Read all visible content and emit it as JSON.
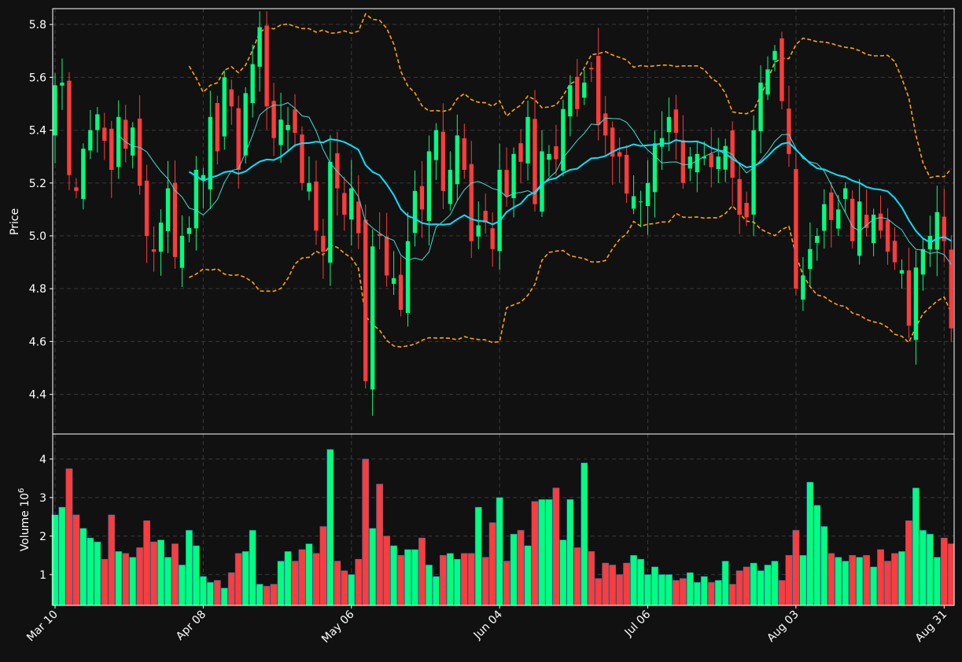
{
  "chart_data": [
    {
      "type": "candlestick",
      "panel": "price",
      "ylabel": "Price",
      "ylim": [
        4.25,
        5.86
      ],
      "yticks": [
        4.4,
        4.6,
        4.8,
        5.0,
        5.2,
        5.4,
        5.6,
        5.8
      ],
      "grid": true,
      "colors": {
        "up": "#00ff7f",
        "down": "#ff3b3b",
        "ma_fast": "#00e5ff",
        "ma_slow": "#40e0d0",
        "band": "#ffa500",
        "background": "#111111"
      },
      "x_tick_labels": [
        "Mar 10",
        "Apr 08",
        "May 06",
        "Jun 04",
        "Jul 06",
        "Aug 03",
        "Aug 31"
      ],
      "x_tick_index": [
        0,
        21,
        42,
        63,
        84,
        105,
        126
      ],
      "closes": [
        5.57,
        5.58,
        5.23,
        5.17,
        5.33,
        5.4,
        5.46,
        5.36,
        5.25,
        5.45,
        5.33,
        5.41,
        5.19,
        5.0,
        4.94,
        5.05,
        5.18,
        4.92,
        5.0,
        5.03,
        5.25,
        5.23,
        5.45,
        5.32,
        5.6,
        5.49,
        5.25,
        5.54,
        5.65,
        5.79,
        5.49,
        5.37,
        5.44,
        5.42,
        5.39,
        5.2,
        5.2,
        5.02,
        4.94,
        5.28,
        5.18,
        5.08,
        5.18,
        5.01,
        4.45,
        4.96,
        5.0,
        4.85,
        4.84,
        4.72,
        4.98,
        5.17,
        5.1,
        5.32,
        5.4,
        5.17,
        5.25,
        5.38,
        5.25,
        4.98,
        5.04,
        5.05,
        4.95,
        5.25,
        5.15,
        5.31,
        5.28,
        5.45,
        5.12,
        5.32,
        5.31,
        5.29,
        5.48,
        5.57,
        5.48,
        5.58,
        5.63,
        5.42,
        5.38,
        5.3,
        5.3,
        5.16,
        5.15,
        5.13,
        5.2,
        5.35,
        5.37,
        5.45,
        5.39,
        5.2,
        5.3,
        5.31,
        5.3,
        5.26,
        5.3,
        5.34,
        5.22,
        5.08,
        5.07,
        5.4,
        5.58,
        5.63,
        5.7,
        5.51,
        5.31,
        4.8,
        4.85,
        4.95,
        5.0,
        5.12,
        5.06,
        5.1,
        5.18,
        4.98,
        5.13,
        5.03,
        5.08,
        5.02,
        4.94,
        4.9,
        4.87,
        4.66,
        4.88,
        4.95,
        5.0,
        5.09,
        4.98,
        4.65
      ],
      "volume_panel": {
        "ylabel": "Volume  10^6",
        "yticks": [
          1,
          2,
          3,
          4
        ],
        "ylim": [
          0.2,
          4.65
        ],
        "values": [
          2.55,
          2.75,
          3.75,
          2.55,
          2.2,
          1.95,
          1.85,
          1.4,
          2.55,
          1.6,
          1.55,
          1.45,
          1.7,
          2.4,
          1.85,
          1.9,
          1.45,
          1.8,
          1.25,
          2.15,
          1.75,
          0.95,
          0.8,
          0.85,
          0.65,
          1.05,
          1.55,
          1.6,
          2.15,
          0.75,
          0.7,
          0.75,
          1.35,
          1.6,
          1.35,
          1.65,
          1.8,
          1.55,
          2.25,
          4.25,
          1.35,
          1.1,
          1.0,
          1.4,
          4.0,
          2.2,
          3.35,
          2.0,
          1.75,
          1.5,
          1.65,
          1.65,
          1.95,
          1.25,
          0.95,
          1.5,
          1.55,
          1.4,
          1.55,
          1.55,
          2.75,
          1.45,
          2.35,
          3.0,
          1.35,
          2.05,
          2.15,
          1.75,
          2.9,
          2.95,
          2.95,
          3.25,
          1.9,
          2.95,
          1.7,
          3.9,
          1.6,
          0.9,
          1.3,
          1.25,
          1.0,
          1.3,
          1.5,
          1.4,
          1.0,
          1.2,
          1.0,
          1.0,
          0.85,
          0.9,
          1.05,
          0.8,
          0.95,
          0.8,
          0.85,
          1.35,
          0.75,
          1.1,
          1.2,
          1.3,
          1.1,
          1.25,
          1.35,
          0.85,
          1.5,
          2.15,
          1.5,
          3.4,
          2.8,
          2.25,
          1.55,
          1.45,
          1.35,
          1.5,
          1.45,
          1.5,
          1.2,
          1.65,
          1.35,
          1.55,
          1.6,
          2.4,
          3.25,
          2.15,
          2.05,
          1.45,
          1.95,
          1.8
        ]
      }
    }
  ]
}
